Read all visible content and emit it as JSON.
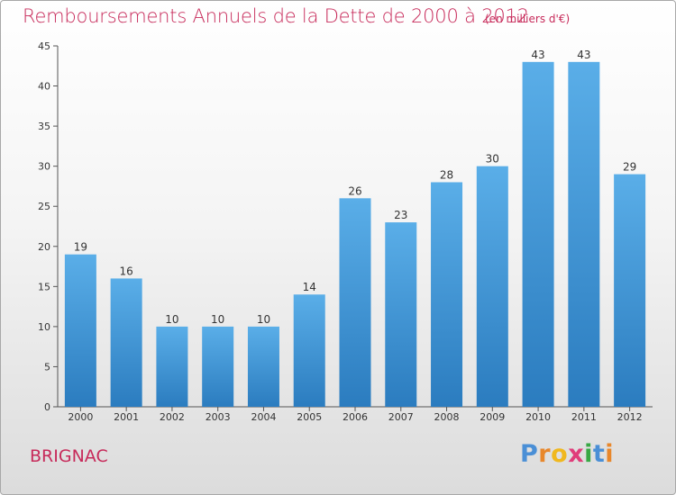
{
  "title": "Remboursements Annuels de la Dette de 2000 à 2012",
  "subtitle": "(en milliers d'€)",
  "place_name": "BRIGNAC",
  "logo_text": "Proxiti",
  "colors": {
    "title": "#c72a5a",
    "bar_top": "#5aaee8",
    "bar_bottom": "#2b7cbf",
    "logo_letters": [
      "#4a8fd6",
      "#e8872b",
      "#f0b81e",
      "#e03d7a",
      "#39a845",
      "#4a8fd6",
      "#e8872b"
    ]
  },
  "chart_data": {
    "type": "bar",
    "categories": [
      "2000",
      "2001",
      "2002",
      "2003",
      "2004",
      "2005",
      "2006",
      "2007",
      "2008",
      "2009",
      "2010",
      "2011",
      "2012"
    ],
    "values": [
      19,
      16,
      10,
      10,
      10,
      14,
      26,
      23,
      28,
      30,
      43,
      43,
      29
    ],
    "title": "Remboursements Annuels de la Dette de 2000 à 2012",
    "xlabel": "",
    "ylabel": "",
    "ylim": [
      0,
      45
    ],
    "yticks": [
      0,
      5,
      10,
      15,
      20,
      25,
      30,
      35,
      40,
      45
    ],
    "grid": false,
    "legend": "none"
  }
}
